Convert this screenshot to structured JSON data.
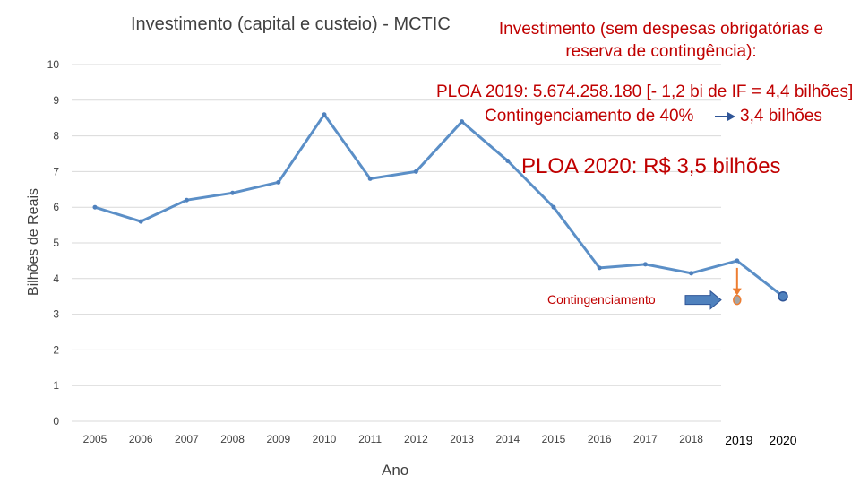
{
  "chart_data": {
    "type": "line",
    "title": "Investimento (capital e custeio) - MCTIC",
    "xlabel": "Ano",
    "ylabel": "Bilhões de Reais",
    "ylim": [
      0,
      10
    ],
    "yticks": [
      "0",
      "1",
      "2",
      "3",
      "4",
      "5",
      "6",
      "7",
      "8",
      "9",
      "10"
    ],
    "categories": [
      "2005",
      "2006",
      "2007",
      "2008",
      "2009",
      "2010",
      "2011",
      "2012",
      "2013",
      "2014",
      "2015",
      "2016",
      "2017",
      "2018",
      "2019",
      "2020"
    ],
    "series": [
      {
        "name": "Investimento",
        "values": [
          6.0,
          5.6,
          6.2,
          6.4,
          6.7,
          8.6,
          6.8,
          7.0,
          8.4,
          7.3,
          6.0,
          4.3,
          4.4,
          4.15,
          4.5,
          3.5
        ]
      }
    ],
    "extra_points": [
      {
        "name": "Contingenciamento 2019",
        "category": "2019",
        "value": 3.4
      }
    ],
    "grid": true,
    "colors": {
      "line": "#5b8fc7",
      "marker": "#4f81bd",
      "accent": "#c00000",
      "arrow_down": "#ed7d31",
      "contingency_point": "#a5a5a5"
    },
    "annotations": {
      "title": "Investimento (sem despesas obrigatórias e reserva de contingência):",
      "ploa2019": "PLOA 2019:  5.674.258.180 [- 1,2 bi de IF = 4,4 bilhões]",
      "contingenciamento40": "Contingenciamento de 40%",
      "contingenciamento40_result": "3,4 bilhões",
      "ploa2020": "PLOA 2020: R$ 3,5 bilhões",
      "contingenciamento": "Contingenciamento"
    }
  }
}
